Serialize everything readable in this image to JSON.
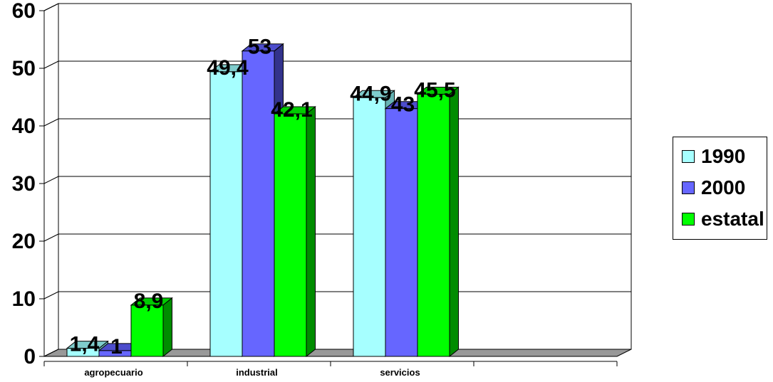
{
  "chart_data": {
    "type": "bar",
    "categories": [
      "agropecuario",
      "industrial",
      "servicios",
      ""
    ],
    "series": [
      {
        "name": "1990",
        "values": [
          1.4,
          49.4,
          44.9,
          null
        ],
        "labels": [
          "1,4",
          "49,4",
          "44,9",
          ""
        ],
        "color": "#a6ffff",
        "side_color": "#66b3b3",
        "top_color": "#7fcccc"
      },
      {
        "name": "2000",
        "values": [
          1,
          53,
          43,
          null
        ],
        "labels": [
          "1",
          "53",
          "43",
          ""
        ],
        "color": "#6666ff",
        "side_color": "#33338c",
        "top_color": "#4d4dcc"
      },
      {
        "name": "estatal",
        "values": [
          8.9,
          42.1,
          45.5,
          null
        ],
        "labels": [
          "8,9",
          "42,1",
          "45,5",
          ""
        ],
        "color": "#00ff00",
        "side_color": "#008c00",
        "top_color": "#00cc00"
      }
    ],
    "yticks": [
      "0",
      "10",
      "20",
      "30",
      "40",
      "50",
      "60"
    ],
    "ylim": [
      0,
      60
    ],
    "grid": true,
    "legend_position": "right",
    "floor_color": "#999999"
  }
}
